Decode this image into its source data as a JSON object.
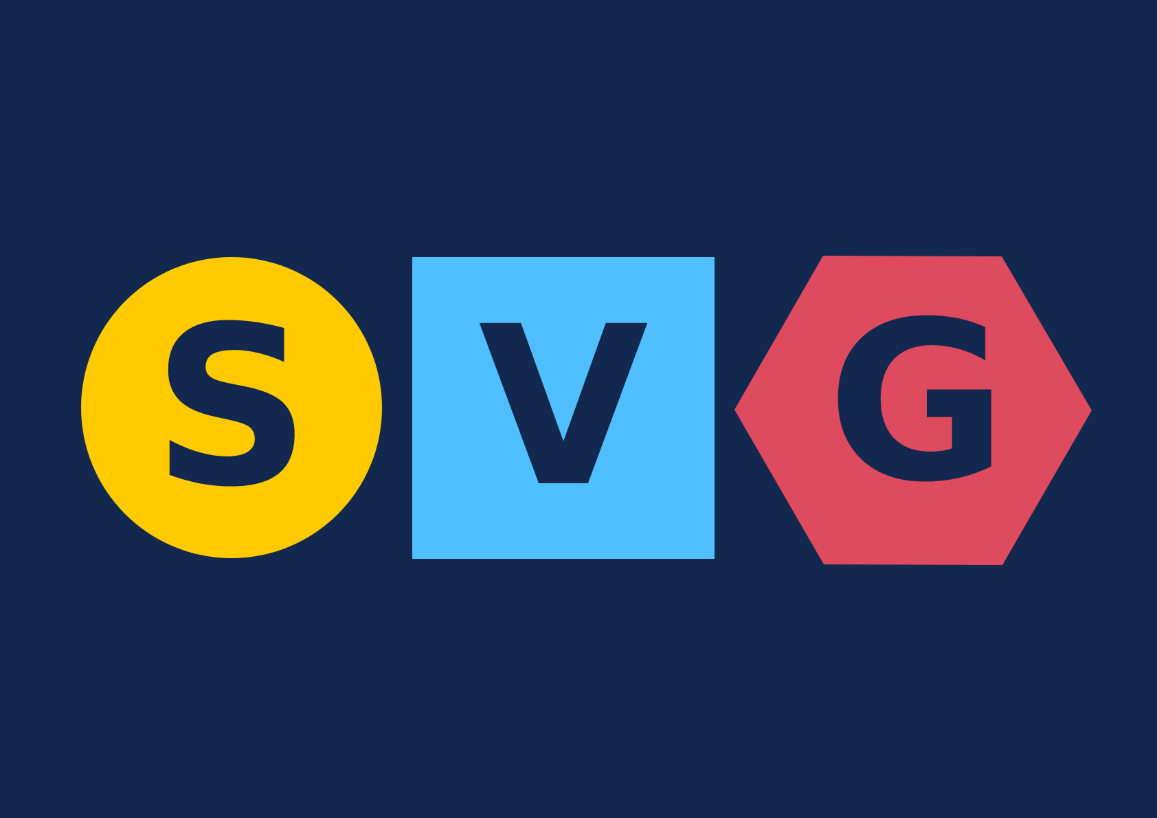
{
  "colors": {
    "background": "#13284f",
    "circle": "#ffcb00",
    "square": "#50bfff",
    "hexagon": "#de4a5e",
    "letter": "#13284f"
  },
  "logo": {
    "letters": [
      "S",
      "V",
      "G"
    ],
    "shapes": [
      "circle",
      "square",
      "hexagon"
    ]
  }
}
